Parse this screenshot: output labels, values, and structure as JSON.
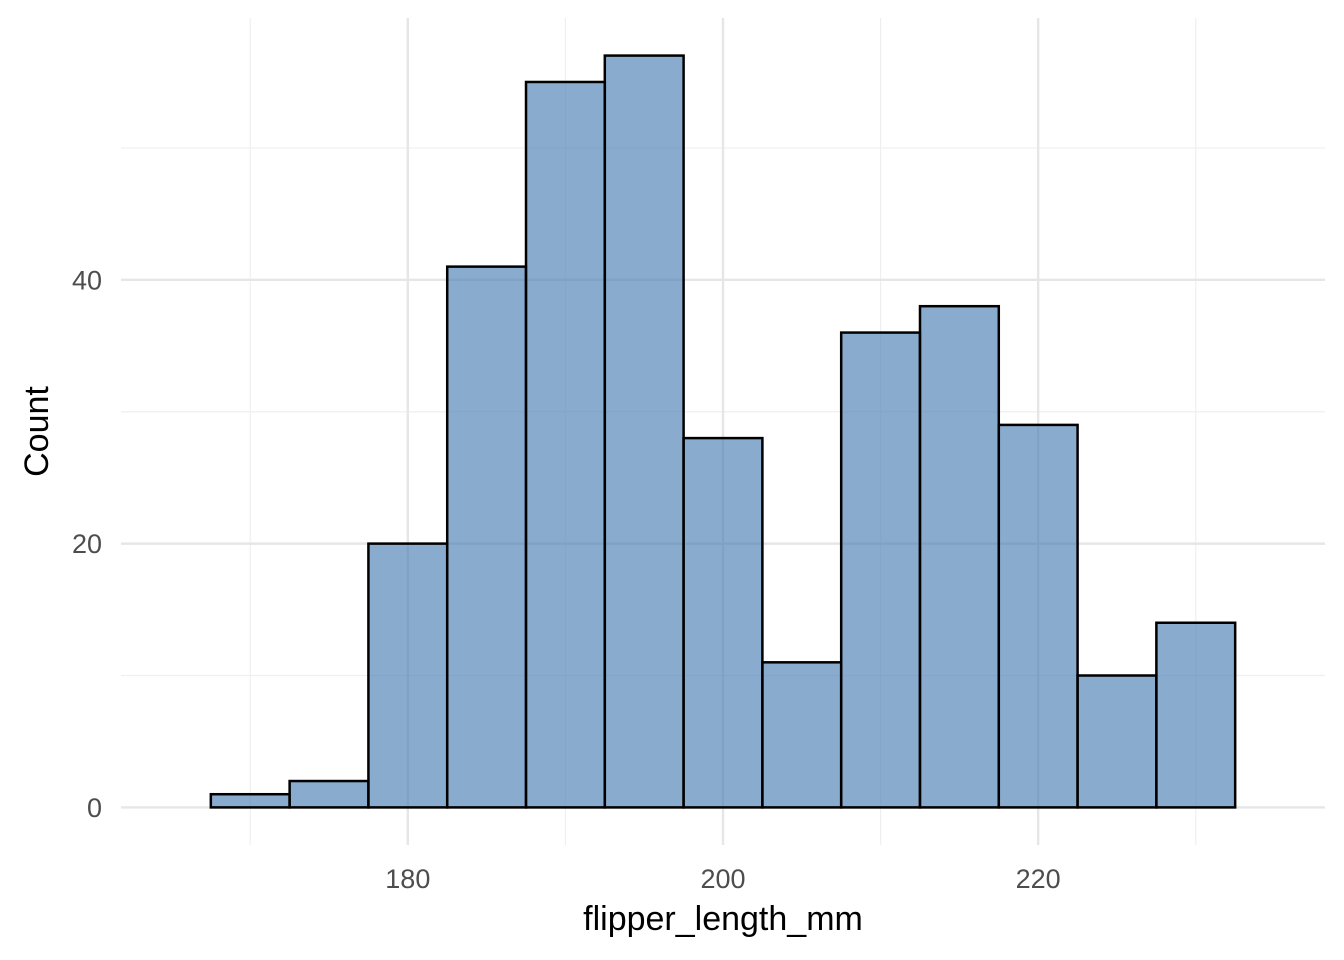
{
  "chart_data": {
    "type": "bar",
    "subtype": "histogram",
    "bin_width": 5,
    "bins": [
      {
        "x_start": 167.5,
        "x_end": 172.5,
        "count": 1
      },
      {
        "x_start": 172.5,
        "x_end": 177.5,
        "count": 2
      },
      {
        "x_start": 177.5,
        "x_end": 182.5,
        "count": 20
      },
      {
        "x_start": 182.5,
        "x_end": 187.5,
        "count": 41
      },
      {
        "x_start": 187.5,
        "x_end": 192.5,
        "count": 55
      },
      {
        "x_start": 192.5,
        "x_end": 197.5,
        "count": 57
      },
      {
        "x_start": 197.5,
        "x_end": 202.5,
        "count": 28
      },
      {
        "x_start": 202.5,
        "x_end": 207.5,
        "count": 11
      },
      {
        "x_start": 207.5,
        "x_end": 212.5,
        "count": 36
      },
      {
        "x_start": 212.5,
        "x_end": 217.5,
        "count": 38
      },
      {
        "x_start": 217.5,
        "x_end": 222.5,
        "count": 29
      },
      {
        "x_start": 222.5,
        "x_end": 227.5,
        "count": 10
      },
      {
        "x_start": 227.5,
        "x_end": 232.5,
        "count": 14
      }
    ],
    "xlabel": "flipper_length_mm",
    "ylabel": "Count",
    "xlim": [
      161.8,
      238.2
    ],
    "ylim": [
      -2.85,
      59.85
    ],
    "x_ticks": [
      180,
      200,
      220
    ],
    "x_minor_ticks": [
      170,
      190,
      210,
      230
    ],
    "y_ticks": [
      0,
      20,
      40
    ],
    "y_minor_ticks": [
      10,
      30,
      50
    ],
    "grid": true,
    "fill_color": "#4A7EB4",
    "fill_opacity": 0.65,
    "edge_color": "#000000",
    "background": "#FFFFFF"
  }
}
